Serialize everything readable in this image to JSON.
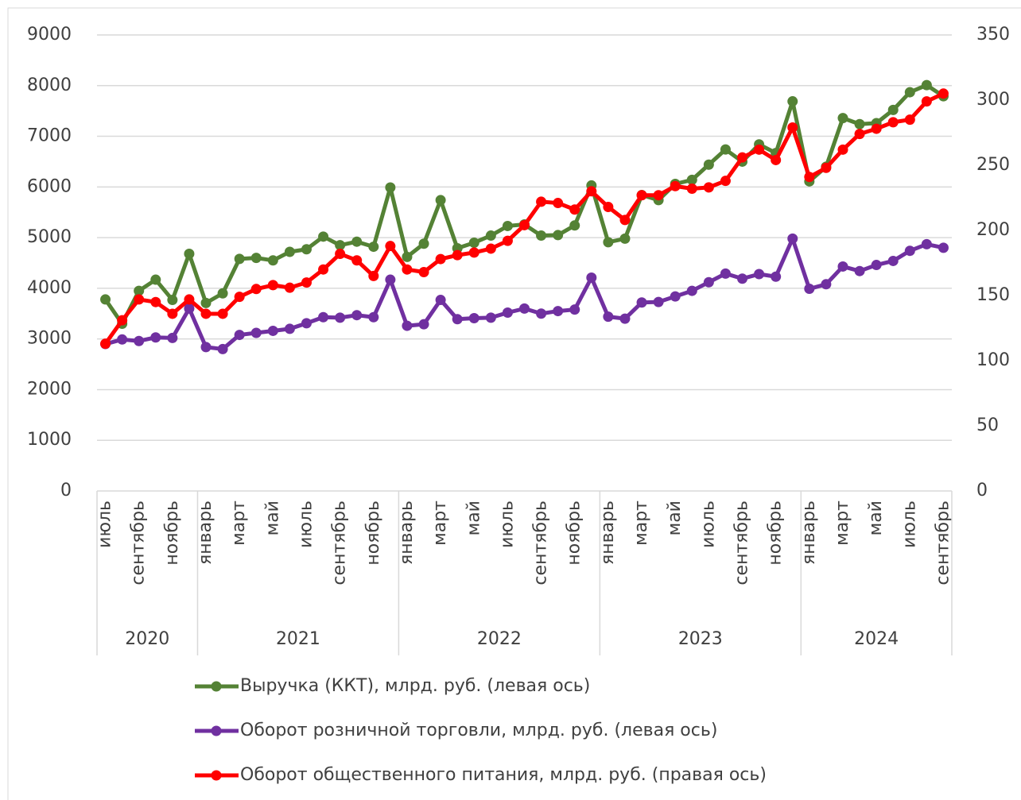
{
  "chart_data": {
    "type": "line",
    "categories": [
      "июль",
      null,
      "сентябрь",
      null,
      "ноябрь",
      null,
      "январь",
      null,
      "март",
      null,
      "май",
      null,
      "июль",
      null,
      "сентябрь",
      null,
      "ноябрь",
      null,
      "январь",
      null,
      "март",
      null,
      "май",
      null,
      "июль",
      null,
      "сентябрь",
      null,
      "ноябрь",
      null,
      "январь",
      null,
      "март",
      null,
      "май",
      null,
      "июль",
      null,
      "сентябрь",
      null,
      "ноябрь",
      null,
      "январь",
      null,
      "март",
      null,
      "май",
      null,
      "июль",
      null,
      "сентябрь"
    ],
    "x_groups": [
      {
        "label": "2020",
        "span": 6
      },
      {
        "label": "2021",
        "span": 12
      },
      {
        "label": "2022",
        "span": 12
      },
      {
        "label": "2023",
        "span": 12
      },
      {
        "label": "2024",
        "span": 9
      }
    ],
    "ylim": [
      0,
      9000
    ],
    "yticks": [
      0,
      1000,
      2000,
      3000,
      4000,
      5000,
      6000,
      7000,
      8000,
      9000
    ],
    "y2lim": [
      0,
      350
    ],
    "y2ticks": [
      0,
      50,
      100,
      150,
      200,
      250,
      300,
      350
    ],
    "grid": true,
    "series": [
      {
        "name": "Выручка (ККТ), млрд. руб. (левая ось)",
        "color": "#548235",
        "values": [
          3780,
          3300,
          3950,
          4170,
          3770,
          4680,
          3710,
          3900,
          4580,
          4600,
          4550,
          4720,
          4770,
          5020,
          4850,
          4920,
          4820,
          5990,
          4620,
          4880,
          5740,
          4790,
          4900,
          5040,
          5230,
          5260,
          5040,
          5050,
          5240,
          6030,
          4910,
          4980,
          5840,
          5740,
          6060,
          6140,
          6440,
          6740,
          6500,
          6840,
          6670,
          7690,
          6110,
          6400,
          7360,
          7240,
          7260,
          7520,
          7870,
          8010,
          7790
        ]
      },
      {
        "name": "Оборот розничной торговли, млрд. руб. (левая ось)",
        "color": "#7030a0",
        "values": [
          2900,
          2990,
          2960,
          3030,
          3020,
          3600,
          2840,
          2800,
          3080,
          3120,
          3160,
          3200,
          3310,
          3430,
          3420,
          3470,
          3430,
          4170,
          3260,
          3290,
          3770,
          3390,
          3410,
          3420,
          3520,
          3600,
          3500,
          3550,
          3580,
          4210,
          3440,
          3400,
          3720,
          3730,
          3840,
          3950,
          4120,
          4290,
          4190,
          4280,
          4230,
          4980,
          3990,
          4080,
          4430,
          4340,
          4460,
          4540,
          4740,
          4870,
          4800
        ]
      },
      {
        "name": "Оборот общественного питания, млрд. руб. (правая ось)",
        "color": "#ff0000",
        "axis": "y2",
        "values": [
          113,
          131,
          147,
          145,
          136,
          147,
          136,
          136,
          149,
          155,
          158,
          156,
          160,
          170,
          182,
          177,
          165,
          188,
          170,
          168,
          178,
          181,
          183,
          186,
          192,
          204,
          222,
          221,
          216,
          230,
          218,
          208,
          227,
          227,
          234,
          232,
          233,
          238,
          256,
          262,
          254,
          279,
          241,
          248,
          262,
          274,
          278,
          283,
          285,
          299,
          305
        ]
      }
    ]
  }
}
